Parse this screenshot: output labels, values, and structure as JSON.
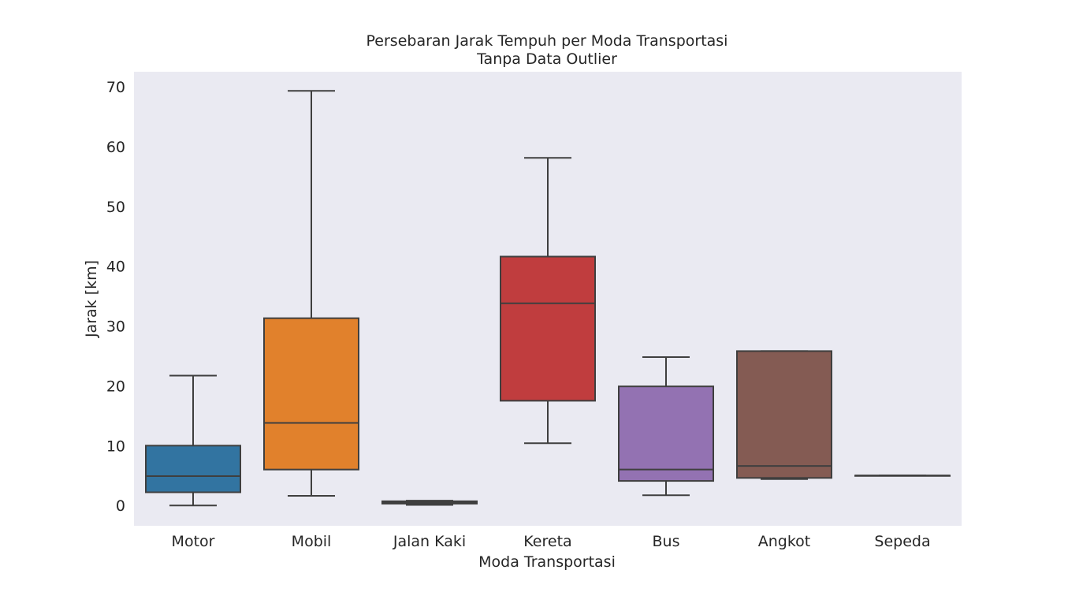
{
  "chart_data": {
    "type": "box",
    "title": "Persebaran Jarak Tempuh per Moda Transportasi",
    "subtitle": "Tanpa Data Outlier",
    "xlabel": "Moda Transportasi",
    "ylabel": "Jarak [km]",
    "ylim": [
      -3.4,
      72.5
    ],
    "yticks": [
      0,
      10,
      20,
      30,
      40,
      50,
      60,
      70
    ],
    "grid": false,
    "categories": [
      "Motor",
      "Mobil",
      "Jalan Kaki",
      "Kereta",
      "Bus",
      "Angkot",
      "Sepeda"
    ],
    "boxes": [
      {
        "category": "Motor",
        "min": 0.0,
        "q1": 2.2,
        "median": 4.9,
        "q3": 10.0,
        "max": 21.7,
        "color": "#3274a1"
      },
      {
        "category": "Mobil",
        "min": 1.6,
        "q1": 6.0,
        "median": 13.8,
        "q3": 31.3,
        "max": 69.3,
        "color": "#e1812c"
      },
      {
        "category": "Jalan Kaki",
        "min": 0.1,
        "q1": 0.3,
        "median": 0.5,
        "q3": 0.7,
        "max": 0.8,
        "color": "#3a923a"
      },
      {
        "category": "Kereta",
        "min": 10.4,
        "q1": 17.5,
        "median": 33.8,
        "q3": 41.6,
        "max": 58.1,
        "color": "#c03d3e"
      },
      {
        "category": "Bus",
        "min": 1.7,
        "q1": 4.1,
        "median": 6.0,
        "q3": 19.9,
        "max": 24.8,
        "color": "#9372b2"
      },
      {
        "category": "Angkot",
        "min": 4.4,
        "q1": 4.6,
        "median": 6.6,
        "q3": 25.8,
        "max": 25.8,
        "color": "#845b53"
      },
      {
        "category": "Sepeda",
        "min": 5.0,
        "q1": 5.0,
        "median": 5.0,
        "q3": 5.0,
        "max": 5.0,
        "color": "#d684bd"
      }
    ]
  }
}
